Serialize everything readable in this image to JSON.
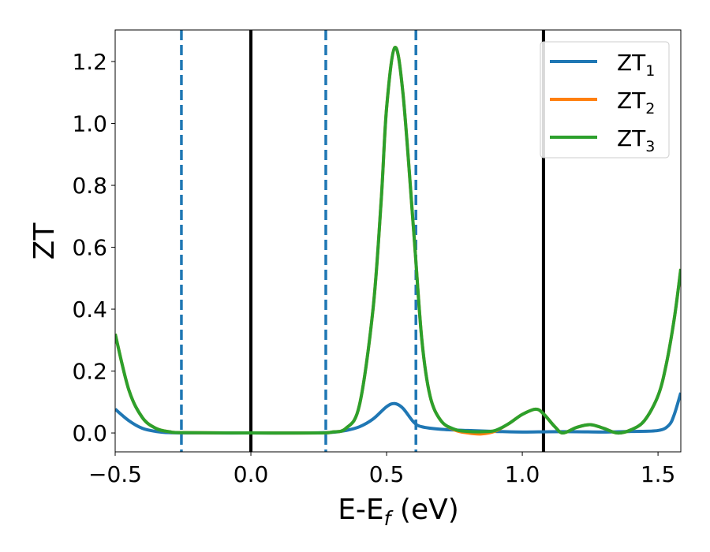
{
  "chart_data": {
    "type": "line",
    "title": "",
    "xlabel": {
      "main": "E-E",
      "sub": "f",
      "suffix": " (eV)"
    },
    "ylabel": "ZT",
    "xlim": [
      -0.5,
      1.584
    ],
    "ylim": [
      -0.061,
      1.302
    ],
    "grid": false,
    "xticks": [
      -0.5,
      0.0,
      0.5,
      1.0,
      1.5
    ],
    "xtick_labels": [
      "−0.5",
      "0.0",
      "0.5",
      "1.0",
      "1.5"
    ],
    "yticks": [
      0.0,
      0.2,
      0.4,
      0.6,
      0.8,
      1.0,
      1.2
    ],
    "ytick_labels": [
      "0.0",
      "0.2",
      "0.4",
      "0.6",
      "0.8",
      "1.0",
      "1.2"
    ],
    "legend_position": "top-right",
    "vlines": [
      {
        "x": -0.256,
        "style": "dashed",
        "color": "#1f77b4"
      },
      {
        "x": 0.0,
        "style": "solid",
        "color": "#000000"
      },
      {
        "x": 0.276,
        "style": "dashed",
        "color": "#1f77b4"
      },
      {
        "x": 0.608,
        "style": "dashed",
        "color": "#1f77b4"
      },
      {
        "x": 1.078,
        "style": "solid",
        "color": "#000000"
      }
    ],
    "series": [
      {
        "name": "ZT1",
        "label": "ZT",
        "sub": "1",
        "color": "#1f77b4",
        "x": [
          -0.5,
          -0.45,
          -0.4,
          -0.35,
          -0.3,
          -0.2,
          0.0,
          0.2,
          0.3,
          0.35,
          0.4,
          0.45,
          0.5,
          0.53,
          0.56,
          0.6,
          0.63,
          0.7,
          0.8,
          0.9,
          1.0,
          1.1,
          1.2,
          1.3,
          1.4,
          1.5,
          1.54,
          1.56,
          1.584
        ],
        "y": [
          0.077,
          0.04,
          0.015,
          0.005,
          0.001,
          0,
          0,
          0,
          0.002,
          0.008,
          0.02,
          0.045,
          0.085,
          0.095,
          0.08,
          0.035,
          0.02,
          0.012,
          0.008,
          0.005,
          0.003,
          0.004,
          0.004,
          0.003,
          0.005,
          0.008,
          0.025,
          0.06,
          0.13
        ]
      },
      {
        "name": "ZT2",
        "label": "ZT",
        "sub": "2",
        "color": "#ff7f0e",
        "x": [
          -0.5,
          -0.45,
          -0.4,
          -0.35,
          -0.3,
          -0.25,
          0.0,
          0.25,
          0.3,
          0.35,
          0.4,
          0.45,
          0.48,
          0.5,
          0.53,
          0.56,
          0.6,
          0.63,
          0.66,
          0.7,
          0.75,
          0.8,
          0.85,
          0.9,
          0.95,
          1.0,
          1.05,
          1.08,
          1.12,
          1.15,
          1.2,
          1.25,
          1.3,
          1.35,
          1.4,
          1.45,
          1.5,
          1.53,
          1.56,
          1.584
        ],
        "y": [
          0.32,
          0.14,
          0.05,
          0.015,
          0.004,
          0.001,
          0,
          0,
          0.003,
          0.015,
          0.09,
          0.4,
          0.75,
          1.05,
          1.245,
          1.1,
          0.65,
          0.3,
          0.12,
          0.04,
          0.01,
          0.0,
          -0.003,
          0.006,
          0.03,
          0.06,
          0.077,
          0.06,
          0.02,
          0.0,
          0.018,
          0.027,
          0.015,
          0.0,
          0.01,
          0.04,
          0.12,
          0.22,
          0.37,
          0.53
        ]
      },
      {
        "name": "ZT3",
        "label": "ZT",
        "sub": "3",
        "color": "#2ca02c",
        "x": [
          -0.5,
          -0.45,
          -0.4,
          -0.35,
          -0.3,
          -0.25,
          0.0,
          0.25,
          0.3,
          0.35,
          0.4,
          0.45,
          0.48,
          0.5,
          0.53,
          0.56,
          0.6,
          0.63,
          0.66,
          0.7,
          0.75,
          0.8,
          0.85,
          0.9,
          0.95,
          1.0,
          1.05,
          1.08,
          1.12,
          1.15,
          1.2,
          1.25,
          1.3,
          1.35,
          1.4,
          1.45,
          1.5,
          1.53,
          1.56,
          1.584
        ],
        "y": [
          0.32,
          0.14,
          0.05,
          0.015,
          0.004,
          0.001,
          0,
          0,
          0.003,
          0.015,
          0.09,
          0.4,
          0.75,
          1.05,
          1.245,
          1.1,
          0.65,
          0.3,
          0.12,
          0.04,
          0.012,
          0.005,
          0.004,
          0.008,
          0.03,
          0.06,
          0.077,
          0.06,
          0.02,
          0.0,
          0.018,
          0.027,
          0.015,
          0.0,
          0.01,
          0.04,
          0.12,
          0.22,
          0.37,
          0.53
        ]
      }
    ]
  }
}
